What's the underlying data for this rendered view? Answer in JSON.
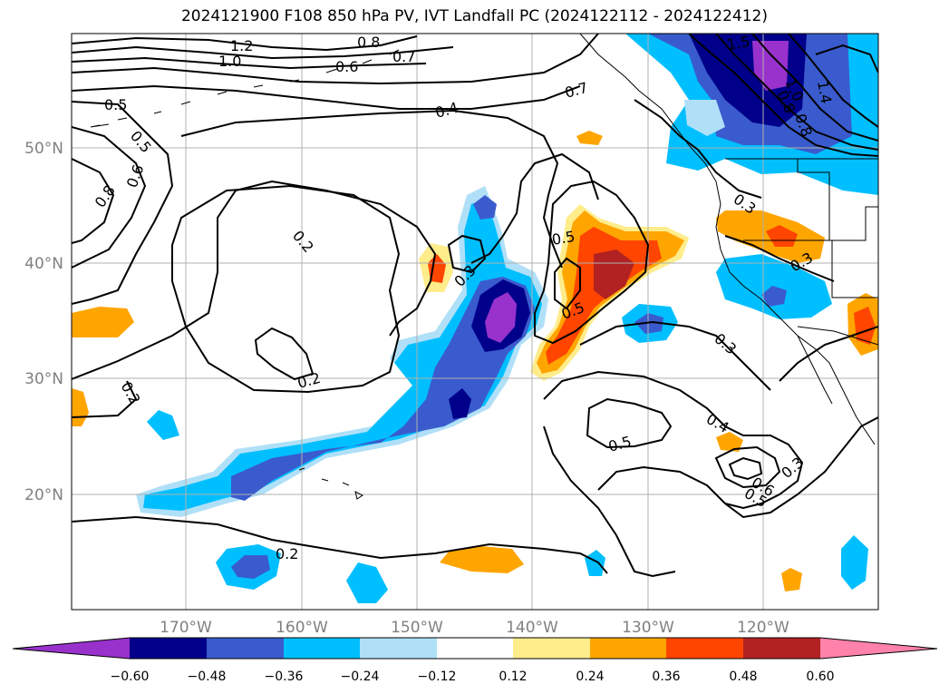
{
  "title": "2024121900 F108 850 hPa PV, IVT Landfall PC (2024122112 - 2024122412)",
  "map": {
    "lon_labels": [
      "170°W",
      "160°W",
      "150°W",
      "140°W",
      "130°W",
      "120°W"
    ],
    "lat_labels": [
      "50°N",
      "40°N",
      "30°N",
      "20°N"
    ],
    "contour_labels": [
      "1.2",
      "1.0",
      "0.8",
      "0.6",
      "0.7",
      "0.5",
      "0.5",
      "0.4",
      "0.8",
      "0.6",
      "0.2",
      "0.3",
      "0.2",
      "0.2",
      "0.5",
      "0.5",
      "0.3",
      "0.4",
      "0.5",
      "0.6",
      "0.5",
      "0.3",
      "0.2",
      "0.3",
      "0.3",
      "1.0",
      "1.5",
      "0.8",
      "1.4",
      "0.7",
      "0.8"
    ]
  },
  "colorbar": {
    "colors": [
      "#9932cc",
      "#00008b",
      "#3a5bcd",
      "#00bfff",
      "#b0e0f8",
      "#ffffff",
      "#ffec8b",
      "#ffa500",
      "#ff4500",
      "#b22222",
      "#ff82ab"
    ],
    "tick_labels": [
      "−0.60",
      "−0.48",
      "−0.36",
      "−0.24",
      "−0.12",
      "0.12",
      "0.24",
      "0.36",
      "0.48",
      "0.60"
    ]
  }
}
